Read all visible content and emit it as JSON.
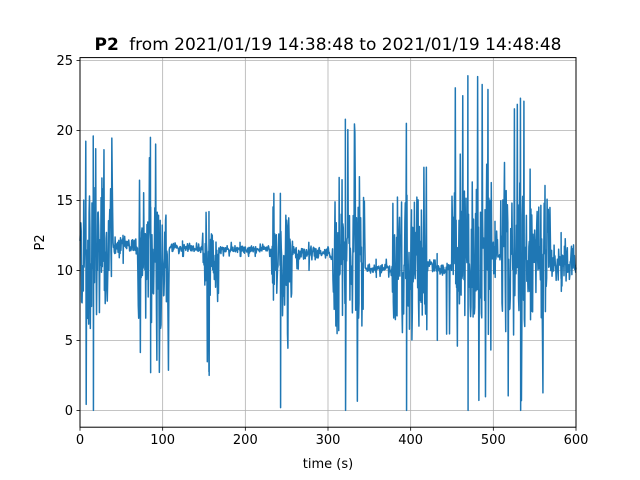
{
  "chart_data": {
    "type": "line",
    "title_bold": "P2",
    "title_rest": "from 2021/01/19 14:38:48 to 2021/01/19 14:48:48",
    "xlabel": "time (s)",
    "ylabel": "P2",
    "xlim": [
      0,
      600
    ],
    "ylim": [
      -1.2,
      25.2
    ],
    "xticks": [
      0,
      100,
      200,
      300,
      400,
      500,
      600
    ],
    "yticks": [
      0,
      5,
      10,
      15,
      20,
      25
    ],
    "grid": true,
    "line_color": "#1f77b4",
    "sample_step_s": 0.5,
    "segments": [
      {
        "t0": 0,
        "t1": 40,
        "mean": 11,
        "amp": 6.5,
        "min": 0,
        "max": 19.6
      },
      {
        "t0": 40,
        "t1": 70,
        "mean": 11.8,
        "amp": 0.7,
        "min": 10.5,
        "max": 12.5
      },
      {
        "t0": 70,
        "t1": 108,
        "mean": 10.5,
        "amp": 6.5,
        "min": 2.7,
        "max": 19.5
      },
      {
        "t0": 108,
        "t1": 148,
        "mean": 11.6,
        "amp": 0.4,
        "min": 11.0,
        "max": 12.1
      },
      {
        "t0": 148,
        "t1": 168,
        "mean": 10.5,
        "amp": 3.5,
        "min": 2.5,
        "max": 14.2
      },
      {
        "t0": 168,
        "t1": 232,
        "mean": 11.5,
        "amp": 0.3,
        "min": 11.0,
        "max": 12.0
      },
      {
        "t0": 232,
        "t1": 258,
        "mean": 10.5,
        "amp": 6.5,
        "min": 0.2,
        "max": 15.5
      },
      {
        "t0": 258,
        "t1": 305,
        "mean": 11.2,
        "amp": 0.6,
        "min": 10.0,
        "max": 12.0
      },
      {
        "t0": 305,
        "t1": 345,
        "mean": 10.5,
        "amp": 7,
        "min": 0,
        "max": 20.8
      },
      {
        "t0": 345,
        "t1": 378,
        "mean": 10.1,
        "amp": 0.4,
        "min": 9.5,
        "max": 10.8
      },
      {
        "t0": 378,
        "t1": 420,
        "mean": 10.5,
        "amp": 7.5,
        "min": 0,
        "max": 20.5
      },
      {
        "t0": 420,
        "t1": 450,
        "mean": 10.2,
        "amp": 0.6,
        "min": 5.0,
        "max": 11.2
      },
      {
        "t0": 450,
        "t1": 498,
        "mean": 11,
        "amp": 8,
        "min": 0,
        "max": 23.9
      },
      {
        "t0": 498,
        "t1": 508,
        "mean": 11.5,
        "amp": 1.5,
        "min": 9.5,
        "max": 13.5
      },
      {
        "t0": 508,
        "t1": 570,
        "mean": 11,
        "amp": 7,
        "min": 0,
        "max": 22.3
      },
      {
        "t0": 570,
        "t1": 600,
        "mean": 10.5,
        "amp": 1.5,
        "min": 8.5,
        "max": 12.7
      }
    ]
  }
}
